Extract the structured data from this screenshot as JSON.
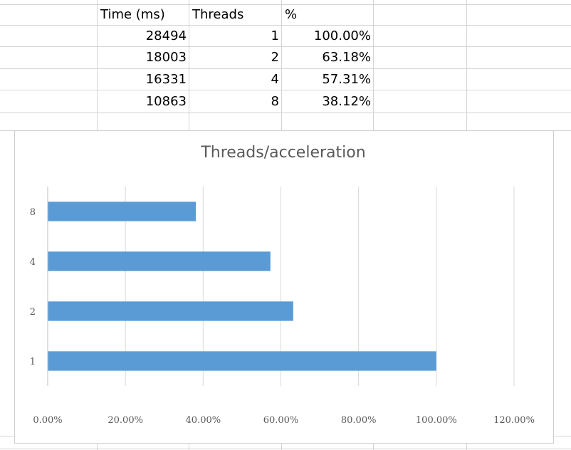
{
  "sheet": {
    "headers": [
      "Time (ms)",
      "Threads",
      "%"
    ],
    "rows": [
      [
        "28494",
        "1",
        "100.00%"
      ],
      [
        "18003",
        "2",
        "63.18%"
      ],
      [
        "16331",
        "4",
        "57.31%"
      ],
      [
        "10863",
        "8",
        "38.12%"
      ]
    ]
  },
  "chart_data": {
    "type": "bar",
    "orientation": "horizontal",
    "title": "Threads/acceleration",
    "categories": [
      "1",
      "2",
      "4",
      "8"
    ],
    "values": [
      100.0,
      63.18,
      57.31,
      38.12
    ],
    "xlim": [
      0,
      120
    ],
    "x_ticks": [
      "0.00%",
      "20.00%",
      "40.00%",
      "60.00%",
      "80.00%",
      "100.00%",
      "120.00%"
    ],
    "grid": true,
    "legend": "none",
    "colors": {
      "bar": "#5B9BD5",
      "grid": "#d9d9d9",
      "text": "#595959"
    }
  }
}
